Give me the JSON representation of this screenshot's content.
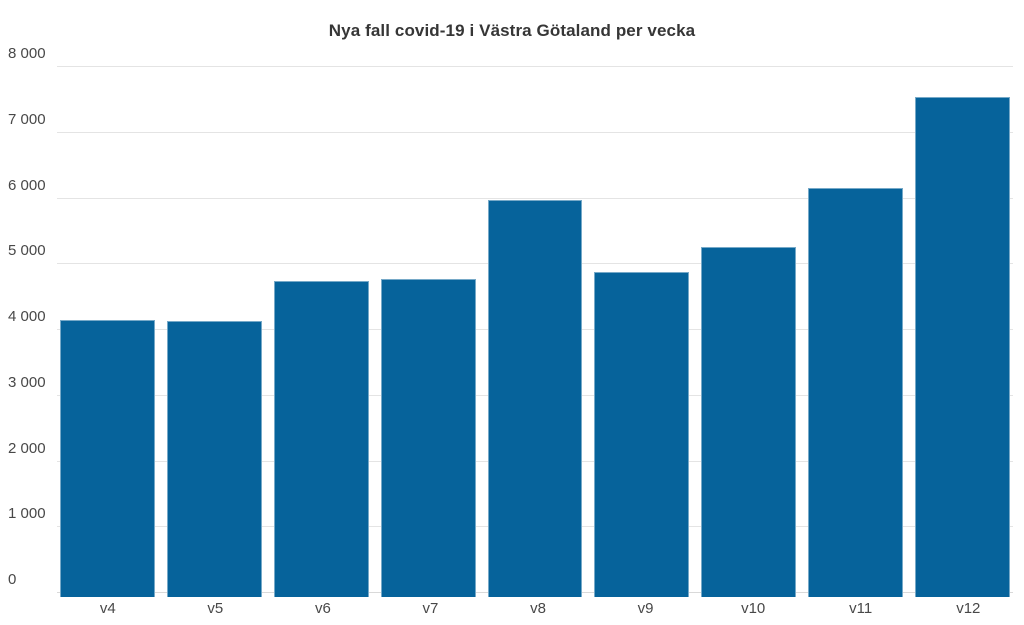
{
  "chart_data": {
    "type": "bar",
    "title": "Nya fall covid-19 i Västra Götaland per vecka",
    "xlabel": "",
    "ylabel": "",
    "categories": [
      "v4",
      "v5",
      "v6",
      "v7",
      "v8",
      "v9",
      "v10",
      "v11",
      "v12"
    ],
    "values": [
      4150,
      4140,
      4740,
      4780,
      5970,
      4880,
      5260,
      6160,
      7540
    ],
    "ylim": [
      0,
      8000
    ],
    "yticks": [
      0,
      1000,
      2000,
      3000,
      4000,
      5000,
      6000,
      7000,
      8000
    ],
    "ytick_labels": [
      "0",
      "1 000",
      "2 000",
      "3 000",
      "4 000",
      "5 000",
      "6 000",
      "7 000",
      "8 000"
    ],
    "grid": true,
    "legend": false,
    "colors": {
      "bar": "#06639b",
      "title": "#363636",
      "tick_label": "#484848",
      "gridline": "#e4e4e4"
    }
  }
}
